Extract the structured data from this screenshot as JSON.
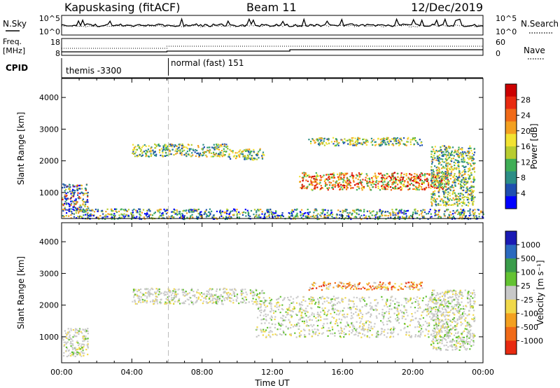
{
  "header": {
    "title": "Kapuskasing (fitACF)",
    "beam": "Beam 11",
    "date": "12/Dec/2019"
  },
  "top_panel": {
    "left_label": "N.Sky",
    "right_label": "N.Search",
    "y_top_label": "10^5",
    "y_bottom_label": "10^0"
  },
  "freq_panel": {
    "left_label_1": "Freq.",
    "left_label_2": "[MHz]",
    "left_tick_top": "18",
    "left_tick_bottom": "8",
    "right_tick_top": "60",
    "right_tick_bottom": "0",
    "right_label": "Nave"
  },
  "cpid_panel": {
    "label": "CPID",
    "segments": [
      {
        "start_hour": 0,
        "text": "themis -3300"
      },
      {
        "start_hour": 6,
        "text": "normal (fast) 151"
      }
    ]
  },
  "x_axis": {
    "title": "Time UT",
    "ticks": [
      "00:00",
      "04:00",
      "08:00",
      "12:00",
      "16:00",
      "20:00",
      "00:00"
    ],
    "range_hours": [
      0,
      24
    ]
  },
  "chart_data": [
    {
      "type": "heatmap",
      "title": "",
      "xlabel": "Time UT",
      "ylabel": "Slant Range [km]",
      "ylim": [
        180,
        4600
      ],
      "yticks": [
        1000,
        2000,
        3000,
        4000
      ],
      "x_range_hours": [
        0,
        24
      ],
      "colorbar": {
        "label": "Power [dB]",
        "range": [
          0,
          32
        ],
        "ticks": [
          "4",
          "8",
          "12",
          "16",
          "20",
          "24",
          "28"
        ],
        "colors": [
          "#0000ff",
          "#1f4fb0",
          "#2c8e86",
          "#3fae56",
          "#b8cc30",
          "#f2e232",
          "#f3a020",
          "#f06a18",
          "#e82a10",
          "#cc0000"
        ]
      },
      "scatter_regions": [
        {
          "t_start": 0.0,
          "t_end": 1.5,
          "r_low": 400,
          "r_high": 1300,
          "level": "mixed"
        },
        {
          "t_start": 4.0,
          "t_end": 9.5,
          "r_low": 2150,
          "r_high": 2550,
          "level": "medium"
        },
        {
          "t_start": 9.5,
          "t_end": 11.5,
          "r_low": 2050,
          "r_high": 2400,
          "level": "medium"
        },
        {
          "t_start": 13.5,
          "t_end": 22.0,
          "r_low": 1100,
          "r_high": 1650,
          "level": "high"
        },
        {
          "t_start": 14.0,
          "t_end": 20.5,
          "r_low": 2500,
          "r_high": 2750,
          "level": "medium"
        },
        {
          "t_start": 21.0,
          "t_end": 23.5,
          "r_low": 600,
          "r_high": 2500,
          "level": "medium"
        },
        {
          "t_start": 0.0,
          "t_end": 24.0,
          "r_low": 180,
          "r_high": 500,
          "level": "low"
        }
      ]
    },
    {
      "type": "heatmap",
      "title": "",
      "xlabel": "Time UT",
      "ylabel": "Slant Range [km]",
      "ylim": [
        180,
        4600
      ],
      "yticks": [
        1000,
        2000,
        3000,
        4000
      ],
      "x_range_hours": [
        0,
        24
      ],
      "colorbar": {
        "label": "Velocity [m s⁻¹]",
        "ticks": [
          "1000",
          "500",
          "100",
          "25",
          "-25",
          "-100",
          "-500",
          "-1000"
        ],
        "colors": [
          "#1a1ab4",
          "#2b6abf",
          "#3a9c4a",
          "#63c232",
          "#c8c8c8",
          "#f0d84a",
          "#f3a020",
          "#f06a18",
          "#e82a10"
        ]
      },
      "scatter_regions": [
        {
          "t_start": 0.0,
          "t_end": 1.5,
          "r_low": 400,
          "r_high": 1300,
          "level": "low"
        },
        {
          "t_start": 4.0,
          "t_end": 11.5,
          "r_low": 2050,
          "r_high": 2550,
          "level": "low"
        },
        {
          "t_start": 11.0,
          "t_end": 22.0,
          "r_low": 1000,
          "r_high": 2300,
          "level": "low"
        },
        {
          "t_start": 14.0,
          "t_end": 20.5,
          "r_low": 2500,
          "r_high": 2750,
          "level": "negative"
        },
        {
          "t_start": 21.0,
          "t_end": 23.5,
          "r_low": 600,
          "r_high": 2500,
          "level": "low"
        }
      ]
    }
  ]
}
